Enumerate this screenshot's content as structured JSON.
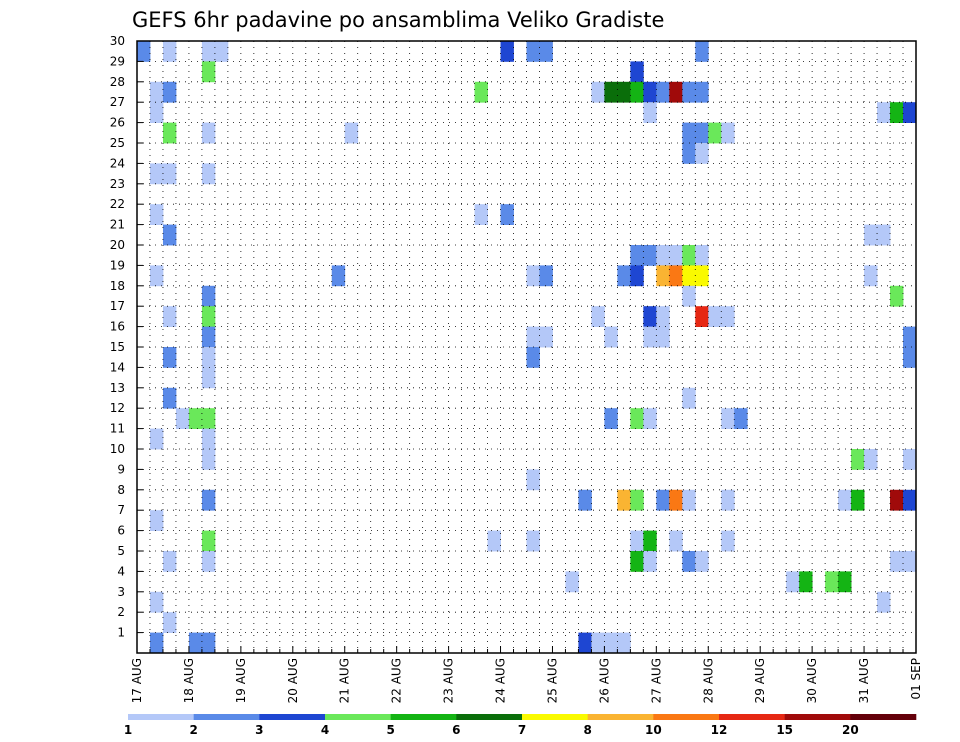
{
  "chart_data": {
    "type": "heatmap",
    "title": "GEFS 6hr padavine po ansamblima Veliko Gradiste",
    "x_tick_labels": [
      "17 AUG",
      "18 AUG",
      "19 AUG",
      "20 AUG",
      "21 AUG",
      "22 AUG",
      "23 AUG",
      "24 AUG",
      "25 AUG",
      "26 AUG",
      "27 AUG",
      "28 AUG",
      "29 AUG",
      "30 AUG",
      "31 AUG",
      "01 SEP"
    ],
    "x_steps_per_day": 4,
    "x_range": [
      0,
      60
    ],
    "y_tick_labels": [
      "1",
      "2",
      "3",
      "4",
      "5",
      "6",
      "7",
      "8",
      "9",
      "10",
      "11",
      "12",
      "13",
      "14",
      "15",
      "16",
      "17",
      "18",
      "19",
      "20",
      "21",
      "22",
      "23",
      "24",
      "25",
      "26",
      "27",
      "28",
      "29",
      "30"
    ],
    "y_range": [
      0,
      30
    ],
    "grid": true,
    "colorbar": {
      "boundaries": [
        "1",
        "2",
        "3",
        "4",
        "5",
        "6",
        "7",
        "8",
        "10",
        "12",
        "15",
        "20"
      ],
      "colors": [
        "#b4c8f8",
        "#5a8ae8",
        "#1e46d2",
        "#6ae85a",
        "#14b414",
        "#0a6e0a",
        "#fafa00",
        "#fab432",
        "#fa7814",
        "#e62814",
        "#a00a0a",
        "#64000a"
      ]
    },
    "cells": [
      [
        1,
        30,
        2
      ],
      [
        3,
        30,
        1
      ],
      [
        6,
        30,
        1
      ],
      [
        7,
        30,
        1
      ],
      [
        29,
        30,
        3
      ],
      [
        31,
        30,
        2
      ],
      [
        32,
        30,
        2
      ],
      [
        44,
        30,
        2
      ],
      [
        6,
        29,
        4
      ],
      [
        39,
        29,
        3
      ],
      [
        2,
        28,
        1
      ],
      [
        3,
        28,
        2
      ],
      [
        27,
        28,
        4
      ],
      [
        36,
        28,
        1
      ],
      [
        37,
        28,
        6
      ],
      [
        38,
        28,
        6
      ],
      [
        39,
        28,
        5
      ],
      [
        40,
        28,
        3
      ],
      [
        41,
        28,
        2
      ],
      [
        42,
        28,
        11
      ],
      [
        43,
        28,
        2
      ],
      [
        44,
        28,
        2
      ],
      [
        2,
        27,
        1
      ],
      [
        40,
        27,
        1
      ],
      [
        58,
        27,
        1
      ],
      [
        59,
        27,
        5
      ],
      [
        60,
        27,
        3
      ],
      [
        3,
        26,
        4
      ],
      [
        6,
        26,
        1
      ],
      [
        17,
        26,
        1
      ],
      [
        43,
        26,
        2
      ],
      [
        44,
        26,
        2
      ],
      [
        45,
        26,
        4
      ],
      [
        46,
        26,
        1
      ],
      [
        43,
        25,
        2
      ],
      [
        44,
        25,
        1
      ],
      [
        2,
        24,
        1
      ],
      [
        3,
        24,
        1
      ],
      [
        6,
        24,
        1
      ],
      [
        2,
        22,
        1
      ],
      [
        27,
        22,
        1
      ],
      [
        29,
        22,
        2
      ],
      [
        3,
        21,
        2
      ],
      [
        57,
        21,
        1
      ],
      [
        58,
        21,
        1
      ],
      [
        39,
        20,
        2
      ],
      [
        40,
        20,
        2
      ],
      [
        41,
        20,
        1
      ],
      [
        42,
        20,
        1
      ],
      [
        43,
        20,
        4
      ],
      [
        44,
        20,
        1
      ],
      [
        2,
        19,
        1
      ],
      [
        16,
        19,
        2
      ],
      [
        31,
        19,
        1
      ],
      [
        32,
        19,
        2
      ],
      [
        38,
        19,
        2
      ],
      [
        39,
        19,
        3
      ],
      [
        41,
        19,
        8
      ],
      [
        42,
        19,
        9
      ],
      [
        43,
        19,
        7
      ],
      [
        44,
        19,
        7
      ],
      [
        57,
        19,
        1
      ],
      [
        6,
        18,
        2
      ],
      [
        43,
        18,
        1
      ],
      [
        59,
        18,
        4
      ],
      [
        3,
        17,
        1
      ],
      [
        6,
        17,
        4
      ],
      [
        36,
        17,
        1
      ],
      [
        40,
        17,
        3
      ],
      [
        41,
        17,
        1
      ],
      [
        44,
        17,
        10
      ],
      [
        45,
        17,
        1
      ],
      [
        46,
        17,
        1
      ],
      [
        6,
        16,
        2
      ],
      [
        31,
        16,
        1
      ],
      [
        32,
        16,
        1
      ],
      [
        37,
        16,
        1
      ],
      [
        40,
        16,
        1
      ],
      [
        41,
        16,
        1
      ],
      [
        60,
        16,
        2
      ],
      [
        3,
        15,
        2
      ],
      [
        6,
        15,
        1
      ],
      [
        31,
        15,
        2
      ],
      [
        60,
        15,
        2
      ],
      [
        6,
        14,
        1
      ],
      [
        3,
        13,
        2
      ],
      [
        43,
        13,
        1
      ],
      [
        4,
        12,
        1
      ],
      [
        5,
        12,
        4
      ],
      [
        6,
        12,
        4
      ],
      [
        37,
        12,
        2
      ],
      [
        39,
        12,
        4
      ],
      [
        40,
        12,
        1
      ],
      [
        46,
        12,
        1
      ],
      [
        47,
        12,
        2
      ],
      [
        2,
        11,
        1
      ],
      [
        6,
        11,
        1
      ],
      [
        6,
        10,
        1
      ],
      [
        56,
        10,
        4
      ],
      [
        57,
        10,
        1
      ],
      [
        60,
        10,
        1
      ],
      [
        31,
        9,
        1
      ],
      [
        6,
        8,
        2
      ],
      [
        35,
        8,
        2
      ],
      [
        38,
        8,
        8
      ],
      [
        39,
        8,
        4
      ],
      [
        41,
        8,
        2
      ],
      [
        42,
        8,
        9
      ],
      [
        43,
        8,
        1
      ],
      [
        46,
        8,
        1
      ],
      [
        55,
        8,
        1
      ],
      [
        56,
        8,
        5
      ],
      [
        59,
        8,
        11
      ],
      [
        60,
        8,
        3
      ],
      [
        2,
        7,
        1
      ],
      [
        6,
        6,
        4
      ],
      [
        28,
        6,
        1
      ],
      [
        31,
        6,
        1
      ],
      [
        39,
        6,
        1
      ],
      [
        40,
        6,
        5
      ],
      [
        42,
        6,
        1
      ],
      [
        46,
        6,
        1
      ],
      [
        3,
        5,
        1
      ],
      [
        6,
        5,
        1
      ],
      [
        39,
        5,
        5
      ],
      [
        40,
        5,
        1
      ],
      [
        43,
        5,
        2
      ],
      [
        44,
        5,
        1
      ],
      [
        59,
        5,
        1
      ],
      [
        60,
        5,
        1
      ],
      [
        34,
        4,
        1
      ],
      [
        51,
        4,
        1
      ],
      [
        52,
        4,
        5
      ],
      [
        54,
        4,
        4
      ],
      [
        55,
        4,
        5
      ],
      [
        2,
        3,
        1
      ],
      [
        58,
        3,
        1
      ],
      [
        3,
        2,
        1
      ],
      [
        2,
        1,
        2
      ],
      [
        5,
        1,
        2
      ],
      [
        6,
        1,
        2
      ],
      [
        35,
        1,
        3
      ],
      [
        36,
        1,
        1
      ],
      [
        37,
        1,
        1
      ],
      [
        38,
        1,
        1
      ]
    ]
  }
}
